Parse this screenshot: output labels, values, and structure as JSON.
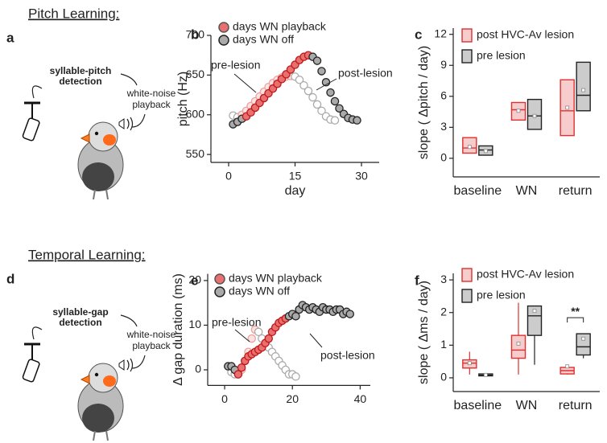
{
  "sections": [
    {
      "title": "Pitch Learning:",
      "panel": "a",
      "detection": [
        "syllable-pitch",
        "detection"
      ],
      "playback": [
        "white-noise",
        "playback"
      ]
    },
    {
      "title": "Temporal Learning:",
      "panel": "d",
      "detection": [
        "syllable-gap",
        "detection"
      ],
      "playback": [
        "white-noise",
        "playback"
      ]
    }
  ],
  "chart_data": [
    {
      "type": "scatter",
      "panel": "b",
      "xlabel": "day",
      "ylabel": "pitch (Hz)",
      "xlim": [
        -4,
        34
      ],
      "xticks": [
        0,
        15,
        30
      ],
      "ylim": [
        540,
        700
      ],
      "yticks": [
        550,
        600,
        650,
        700
      ],
      "legend": [
        {
          "name": "days WN playback",
          "color": "#e87070",
          "edge": "#555"
        },
        {
          "name": "days WN off",
          "color": "#aaaaaa",
          "edge": "#222"
        }
      ],
      "annotations": [
        "pre-lesion",
        "post-lesion"
      ],
      "series": [
        {
          "color": "#ffffff",
          "edge": "#aaaaaa",
          "x": [
            1,
            2,
            3
          ],
          "values": [
            599,
            597,
            596
          ]
        },
        {
          "color": "#fbe3e3",
          "edge": "#f0a0a0",
          "x": [
            3,
            4,
            5,
            6,
            7,
            8,
            9,
            10,
            11,
            12,
            13,
            14
          ],
          "values": [
            600,
            605,
            611,
            617,
            623,
            629,
            635,
            640,
            644,
            647,
            648,
            649
          ]
        },
        {
          "color": "#ffffff",
          "edge": "#aaaaaa",
          "x": [
            15,
            16,
            17,
            18,
            19,
            20,
            21,
            22,
            23,
            24
          ],
          "values": [
            648,
            644,
            637,
            630,
            622,
            613,
            605,
            598,
            594,
            593
          ]
        },
        {
          "color": "#aaaaaa",
          "edge": "#222222",
          "x": [
            1,
            2,
            3
          ],
          "values": [
            588,
            591,
            595
          ]
        },
        {
          "color": "#e87070",
          "edge": "#c01818",
          "x": [
            4,
            5,
            6,
            7,
            8,
            9,
            10,
            11,
            12,
            13,
            14,
            15,
            16,
            17,
            18
          ],
          "values": [
            598,
            603,
            609,
            615,
            621,
            627,
            633,
            639,
            645,
            651,
            657,
            663,
            669,
            673,
            675
          ]
        },
        {
          "color": "#aaaaaa",
          "edge": "#222222",
          "x": [
            19,
            20,
            21,
            22,
            23,
            24,
            25,
            26,
            27,
            28,
            29
          ],
          "values": [
            673,
            668,
            655,
            641,
            628,
            617,
            608,
            601,
            596,
            594,
            593
          ]
        }
      ]
    },
    {
      "type": "box",
      "panel": "c",
      "ylabel": "slope ( Δpitch / day)",
      "categories": [
        "baseline",
        "WN",
        "return"
      ],
      "ylim": [
        -1.8,
        12.6
      ],
      "yticks": [
        0,
        3,
        6,
        9,
        12
      ],
      "series": [
        {
          "name": "post HVC-Av lesion",
          "color": "#e03030",
          "fill": "#f6cccc",
          "boxes": [
            {
              "q1": 0.5,
              "median": 1.0,
              "q3": 2.0,
              "mean": 1.1
            },
            {
              "q1": 3.7,
              "median": 4.7,
              "q3": 5.4,
              "mean": 4.6
            },
            {
              "q1": 2.2,
              "median": 4.6,
              "q3": 7.6,
              "mean": 4.9
            }
          ]
        },
        {
          "name": "pre lesion",
          "color": "#222222",
          "fill": "#cccccc",
          "boxes": [
            {
              "q1": 0.3,
              "median": 0.8,
              "q3": 1.2,
              "mean": 0.7
            },
            {
              "q1": 2.8,
              "median": 4.1,
              "q3": 5.7,
              "mean": 4.1
            },
            {
              "q1": 4.6,
              "median": 6.1,
              "q3": 9.3,
              "mean": 6.6
            }
          ]
        }
      ]
    },
    {
      "type": "scatter",
      "panel": "e",
      "ylabel": "Δ gap duration (ms)",
      "xlim": [
        -5,
        43
      ],
      "xticks": [
        0,
        20,
        40
      ],
      "ylim": [
        -3.5,
        21.5
      ],
      "yticks": [
        0,
        10,
        20
      ],
      "legend": [
        {
          "name": "days WN playback",
          "color": "#e87070",
          "edge": "#555"
        },
        {
          "name": "days WN off",
          "color": "#aaaaaa",
          "edge": "#222"
        }
      ],
      "annotations": [
        "pre-lesion",
        "post-lesion"
      ],
      "series": [
        {
          "color": "#ffffff",
          "edge": "#aaaaaa",
          "x": [
            2,
            3,
            4
          ],
          "values": [
            -0.5,
            -1,
            -1
          ]
        },
        {
          "color": "#fbe3e3",
          "edge": "#f0a0a0",
          "x": [
            5,
            6,
            7,
            8,
            9
          ],
          "values": [
            0,
            2,
            4,
            7,
            9
          ]
        },
        {
          "color": "#ffffff",
          "edge": "#aaaaaa",
          "x": [
            10,
            11,
            12,
            13,
            14,
            15,
            16,
            17,
            18,
            19,
            20,
            21
          ],
          "values": [
            8.5,
            7,
            6,
            5,
            4,
            3,
            2,
            1,
            0,
            -1,
            -1,
            -1.5
          ]
        },
        {
          "color": "#aaaaaa",
          "edge": "#222222",
          "x": [
            1,
            2,
            3
          ],
          "values": [
            0.8,
            0.8,
            0
          ]
        },
        {
          "color": "#e87070",
          "edge": "#c01818",
          "x": [
            4,
            5,
            6,
            7,
            8,
            9,
            10,
            11,
            12,
            13,
            14,
            15,
            16,
            17,
            18
          ],
          "values": [
            -1,
            0.5,
            2,
            3,
            3.5,
            4,
            4.5,
            5,
            6,
            7,
            8.5,
            9.5,
            10.5,
            11,
            11.5
          ]
        },
        {
          "color": "#aaaaaa",
          "edge": "#222222",
          "x": [
            19,
            20,
            21,
            22,
            23,
            24,
            25,
            26,
            27,
            28,
            29,
            30,
            31,
            32,
            33,
            34,
            35,
            36,
            37
          ],
          "values": [
            12,
            12.5,
            12,
            13.5,
            14.5,
            14,
            13.5,
            14,
            13.5,
            13,
            14,
            13.5,
            13.5,
            13,
            13.5,
            13.5,
            12.5,
            13,
            12.5
          ]
        }
      ]
    },
    {
      "type": "box",
      "panel": "f",
      "ylabel": "slope ( Δms / day)",
      "categories": [
        "baseline",
        "WN",
        "return"
      ],
      "ylim": [
        -0.42,
        3.2
      ],
      "yticks": [
        0,
        1,
        2,
        3
      ],
      "annotations": [
        "**"
      ],
      "series": [
        {
          "name": "post HVC-Av lesion",
          "color": "#e03030",
          "fill": "#f6cccc",
          "boxes": [
            {
              "low": 0.1,
              "q1": 0.3,
              "median": 0.45,
              "q3": 0.55,
              "high": 0.8,
              "mean": 0.45
            },
            {
              "low": 0.1,
              "q1": 0.6,
              "median": 0.85,
              "q3": 1.3,
              "high": 2.3,
              "mean": 1.05
            },
            {
              "low": 0.1,
              "q1": 0.12,
              "median": 0.22,
              "q3": 0.32,
              "high": 0.35,
              "mean": 0.35
            }
          ]
        },
        {
          "name": "pre lesion",
          "color": "#222222",
          "fill": "#cccccc",
          "boxes": [
            {
              "low": 0.05,
              "q1": 0.06,
              "median": 0.08,
              "q3": 0.12,
              "high": 0.13,
              "mean": 0.09
            },
            {
              "low": 0.4,
              "q1": 1.3,
              "median": 1.9,
              "q3": 2.2,
              "high": 2.2,
              "mean": 2.05
            },
            {
              "low": 0.6,
              "q1": 0.7,
              "median": 0.95,
              "q3": 1.35,
              "high": 1.35,
              "mean": 1.2
            }
          ]
        }
      ]
    }
  ]
}
